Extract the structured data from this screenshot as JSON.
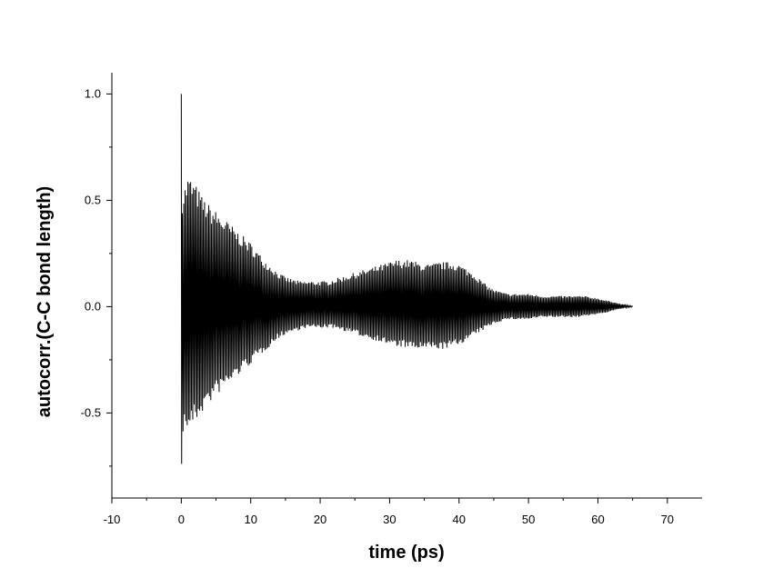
{
  "chart_data": {
    "type": "line",
    "title": "",
    "xlabel": "time (ps)",
    "ylabel": "autocorr.(C-C bond length)",
    "xlim": [
      -10,
      75
    ],
    "ylim": [
      -0.9,
      1.1
    ],
    "x_ticks": [
      -10,
      0,
      10,
      20,
      30,
      40,
      50,
      60,
      70
    ],
    "x_tick_labels": [
      "-10",
      "0",
      "10",
      "20",
      "30",
      "40",
      "50",
      "60",
      "70"
    ],
    "y_ticks": [
      -0.5,
      0.0,
      0.5,
      1.0
    ],
    "y_tick_labels": [
      "-0.5",
      "0.0",
      "0.5",
      "1.0"
    ],
    "grid": false,
    "legend": "none",
    "line_color": "#000000",
    "initial_point": {
      "x": 0,
      "y": 1.0
    },
    "minimum_near_origin": {
      "x": 0.05,
      "y": -0.74
    },
    "envelope_x": [
      0,
      1,
      2,
      3,
      4,
      5,
      6,
      7,
      8,
      9,
      10,
      11,
      12,
      13,
      14,
      15,
      16,
      17,
      18,
      19,
      20,
      21,
      22,
      23,
      24,
      25,
      26,
      27,
      28,
      29,
      30,
      31,
      32,
      33,
      34,
      35,
      36,
      37,
      38,
      39,
      40,
      41,
      42,
      43,
      44,
      45,
      46,
      47,
      48,
      49,
      50,
      51,
      52,
      53,
      54,
      55,
      56,
      57,
      58,
      59,
      60,
      61,
      62,
      63,
      64,
      65
    ],
    "envelope_upper": [
      0.52,
      0.62,
      0.58,
      0.52,
      0.48,
      0.45,
      0.42,
      0.39,
      0.36,
      0.33,
      0.3,
      0.26,
      0.22,
      0.19,
      0.16,
      0.14,
      0.13,
      0.12,
      0.12,
      0.12,
      0.12,
      0.12,
      0.13,
      0.14,
      0.15,
      0.16,
      0.17,
      0.18,
      0.19,
      0.2,
      0.21,
      0.22,
      0.22,
      0.22,
      0.21,
      0.2,
      0.2,
      0.21,
      0.21,
      0.21,
      0.2,
      0.18,
      0.16,
      0.13,
      0.1,
      0.08,
      0.07,
      0.06,
      0.06,
      0.06,
      0.06,
      0.055,
      0.05,
      0.05,
      0.05,
      0.05,
      0.05,
      0.05,
      0.05,
      0.045,
      0.04,
      0.03,
      0.025,
      0.015,
      0.008,
      0.002
    ],
    "envelope_lower": [
      -0.6,
      -0.58,
      -0.55,
      -0.5,
      -0.46,
      -0.42,
      -0.39,
      -0.36,
      -0.33,
      -0.3,
      -0.27,
      -0.24,
      -0.21,
      -0.18,
      -0.15,
      -0.13,
      -0.12,
      -0.11,
      -0.1,
      -0.1,
      -0.1,
      -0.1,
      -0.1,
      -0.11,
      -0.12,
      -0.13,
      -0.14,
      -0.15,
      -0.16,
      -0.17,
      -0.18,
      -0.19,
      -0.19,
      -0.2,
      -0.2,
      -0.2,
      -0.2,
      -0.2,
      -0.2,
      -0.19,
      -0.18,
      -0.16,
      -0.14,
      -0.12,
      -0.1,
      -0.08,
      -0.07,
      -0.06,
      -0.06,
      -0.06,
      -0.06,
      -0.055,
      -0.05,
      -0.05,
      -0.05,
      -0.05,
      -0.05,
      -0.05,
      -0.045,
      -0.04,
      -0.035,
      -0.03,
      -0.02,
      -0.012,
      -0.005,
      -0.001
    ]
  }
}
